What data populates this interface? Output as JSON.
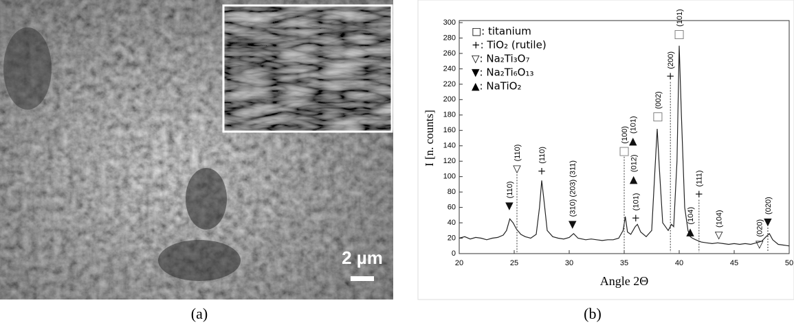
{
  "figure": {
    "panel_a": {
      "caption": "(a)",
      "scale_bar": "2 µm"
    },
    "panel_b": {
      "caption": "(b)"
    }
  },
  "chart_data": {
    "type": "line",
    "xlabel": "Angle 2Θ",
    "ylabel": "I [n. counts]",
    "x": [
      20,
      20.5,
      21,
      21.5,
      22,
      22.5,
      23,
      23.5,
      24,
      24.3,
      24.6,
      24.9,
      25.2,
      25.6,
      26,
      26.5,
      27,
      27.3,
      27.5,
      27.7,
      28,
      28.5,
      29,
      29.5,
      30,
      30.4,
      30.8,
      31.5,
      32,
      32.5,
      33,
      33.5,
      34,
      34.5,
      34.9,
      35.1,
      35.3,
      35.6,
      36,
      36.2,
      36.5,
      37,
      37.5,
      37.8,
      38,
      38.2,
      38.5,
      39,
      39.3,
      39.5,
      39.8,
      40,
      40.2,
      40.5,
      40.8,
      41,
      41.2,
      41.5,
      42,
      42.5,
      43,
      43.5,
      44,
      44.5,
      45,
      45.5,
      46,
      46.5,
      47,
      47.5,
      47.9,
      48.2,
      48.5,
      49,
      49.5,
      50
    ],
    "series": [
      {
        "color": "#222222",
        "values": [
          20,
          22,
          19,
          21,
          20,
          18,
          20,
          21,
          24,
          30,
          45,
          40,
          32,
          25,
          22,
          20,
          25,
          60,
          95,
          70,
          30,
          22,
          20,
          19,
          21,
          26,
          20,
          18,
          19,
          18,
          17,
          18,
          18,
          20,
          30,
          48,
          28,
          25,
          35,
          38,
          28,
          22,
          30,
          110,
          162,
          110,
          40,
          30,
          38,
          35,
          120,
          270,
          180,
          60,
          30,
          22,
          20,
          18,
          15,
          14,
          13,
          14,
          13,
          12,
          13,
          12,
          13,
          12,
          14,
          16,
          22,
          26,
          18,
          12,
          11,
          10
        ]
      }
    ],
    "xlim": [
      20,
      50
    ],
    "xticks": [
      20,
      25,
      30,
      35,
      40,
      45,
      50
    ],
    "ylim": [
      0,
      300
    ],
    "yticks": [
      0,
      20,
      40,
      60,
      80,
      100,
      120,
      140,
      160,
      180,
      200,
      220,
      240,
      260,
      280,
      300
    ],
    "legend": [
      "□: titanium",
      "+: TiO₂ (rutile)",
      "▽: Na₂Ti₃O₇",
      "▼: Na₂Ti₆O₁₃",
      "▲: NaTiO₂"
    ],
    "annotations": [
      {
        "symbol": "▼",
        "label": "(110)",
        "x": 24.56,
        "y": 62
      },
      {
        "symbol": "▽",
        "label": "(110)",
        "x": 25.25,
        "y": 110,
        "guide": true
      },
      {
        "symbol": "+",
        "label": "(110)",
        "x": 27.5,
        "y": 107
      },
      {
        "symbol": "▼",
        "label": "(310) (203) (311)",
        "x": 30.3,
        "y": 38
      },
      {
        "symbol": "□",
        "label": "(100)",
        "x": 35.0,
        "y": 133,
        "guide": true
      },
      {
        "symbol": "▲",
        "label": "(101)",
        "x": 35.8,
        "y": 146
      },
      {
        "symbol": "▲",
        "label": "(012)",
        "x": 35.85,
        "y": 96
      },
      {
        "symbol": "+",
        "label": "(101)",
        "x": 36.05,
        "y": 46
      },
      {
        "symbol": "□",
        "label": "(002)",
        "x": 38.06,
        "y": 178
      },
      {
        "symbol": "+",
        "label": "(200)",
        "x": 39.2,
        "y": 230,
        "guide": true
      },
      {
        "symbol": "□",
        "label": "(101)",
        "x": 40.0,
        "y": 285
      },
      {
        "symbol": "▲",
        "label": "(104)",
        "x": 41.0,
        "y": 28
      },
      {
        "symbol": "+",
        "label": "(111)",
        "x": 41.8,
        "y": 77,
        "guide": true
      },
      {
        "symbol": "▽",
        "label": "(104)",
        "x": 43.6,
        "y": 24
      },
      {
        "symbol": "▽",
        "label": "(020)",
        "x": 47.3,
        "y": 12
      },
      {
        "symbol": "▼",
        "label": "(020)",
        "x": 48.06,
        "y": 41,
        "guide": true
      }
    ]
  }
}
